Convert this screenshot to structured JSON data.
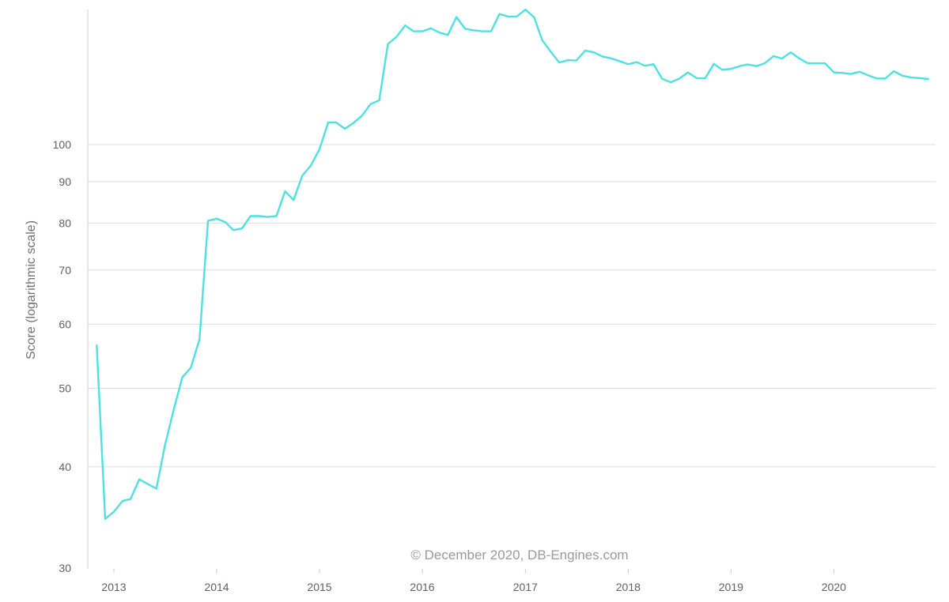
{
  "chart_data": {
    "type": "line",
    "ylabel": "Score (logarithmic scale)",
    "xlabel": "",
    "y_scale": "log",
    "ylim": [
      30,
      175
    ],
    "xlim": [
      "2012-09-01",
      "2020-12-31"
    ],
    "grid": true,
    "y_ticks": [
      {
        "value": 30,
        "label": "30"
      },
      {
        "value": 40,
        "label": "40"
      },
      {
        "value": 50,
        "label": "50"
      },
      {
        "value": 60,
        "label": "60"
      },
      {
        "value": 70,
        "label": "70"
      },
      {
        "value": 80,
        "label": "80"
      },
      {
        "value": 90,
        "label": "90"
      },
      {
        "value": 100,
        "label": "100"
      }
    ],
    "x_ticks": [
      {
        "value": "2013-01-01",
        "label": "2013"
      },
      {
        "value": "2014-01-01",
        "label": "2014"
      },
      {
        "value": "2015-01-01",
        "label": "2015"
      },
      {
        "value": "2016-01-01",
        "label": "2016"
      },
      {
        "value": "2017-01-01",
        "label": "2017"
      },
      {
        "value": "2018-01-01",
        "label": "2018"
      },
      {
        "value": "2019-01-01",
        "label": "2019"
      },
      {
        "value": "2020-01-01",
        "label": "2020"
      }
    ],
    "credit": "© December 2020, DB-Engines.com",
    "colors": {
      "line": "#4fe0e0",
      "grid": "#d8dce6",
      "axis": "#c0d0e0",
      "text": "#606060"
    },
    "series": [
      {
        "x": [
          "2012-11",
          "2012-12",
          "2013-01",
          "2013-02",
          "2013-03",
          "2013-04",
          "2013-05",
          "2013-06",
          "2013-07",
          "2013-08",
          "2013-09",
          "2013-10",
          "2013-11",
          "2013-12",
          "2014-01",
          "2014-02",
          "2014-03",
          "2014-04",
          "2014-05",
          "2014-06",
          "2014-07",
          "2014-08",
          "2014-09",
          "2014-10",
          "2014-11",
          "2014-12",
          "2015-01",
          "2015-02",
          "2015-03",
          "2015-04",
          "2015-05",
          "2015-06",
          "2015-07",
          "2015-08",
          "2015-09",
          "2015-10",
          "2015-11",
          "2015-12",
          "2016-01",
          "2016-02",
          "2016-03",
          "2016-04",
          "2016-05",
          "2016-06",
          "2016-07",
          "2016-08",
          "2016-09",
          "2016-10",
          "2016-11",
          "2016-12",
          "2017-01",
          "2017-02",
          "2017-03",
          "2017-04",
          "2017-05",
          "2017-06",
          "2017-07",
          "2017-08",
          "2017-09",
          "2017-10",
          "2017-11",
          "2017-12",
          "2018-01",
          "2018-02",
          "2018-03",
          "2018-04",
          "2018-05",
          "2018-06",
          "2018-07",
          "2018-08",
          "2018-09",
          "2018-10",
          "2018-11",
          "2018-12",
          "2019-01",
          "2019-02",
          "2019-03",
          "2019-04",
          "2019-05",
          "2019-06",
          "2019-07",
          "2019-08",
          "2019-09",
          "2019-10",
          "2019-11",
          "2019-12",
          "2020-01",
          "2020-02",
          "2020-03",
          "2020-04",
          "2020-05",
          "2020-06",
          "2020-07",
          "2020-08",
          "2020-09",
          "2020-10",
          "2020-11",
          "2020-12"
        ],
        "values": [
          56.5,
          34.5,
          35.2,
          36.3,
          36.5,
          38.6,
          38.1,
          37.6,
          42.5,
          47.0,
          51.6,
          53.0,
          57.5,
          80.5,
          81.0,
          80.2,
          78.4,
          78.8,
          81.6,
          81.6,
          81.4,
          81.6,
          87.6,
          85.4,
          91.6,
          94.2,
          98.7,
          106.5,
          106.5,
          104.6,
          106.3,
          108.6,
          112.2,
          113.4,
          133.1,
          135.8,
          140.3,
          138.0,
          138.0,
          139.2,
          137.5,
          136.6,
          143.7,
          139.0,
          138.4,
          138.0,
          138.0,
          145.0,
          143.9,
          143.9,
          146.8,
          143.6,
          134.7,
          130.2,
          126.3,
          127.1,
          127.0,
          130.6,
          130.0,
          128.5,
          127.8,
          126.8,
          125.7,
          126.4,
          125.1,
          125.7,
          120.6,
          119.4,
          120.6,
          122.8,
          120.8,
          120.7,
          125.8,
          123.7,
          124.0,
          125.0,
          125.6,
          125.0,
          126.0,
          128.6,
          127.7,
          130.0,
          127.7,
          126.0,
          126.0,
          126.0,
          122.8,
          122.6,
          122.2,
          123.0,
          121.8,
          120.7,
          120.6,
          123.2,
          121.6,
          121.0,
          120.8,
          120.5
        ]
      }
    ]
  }
}
